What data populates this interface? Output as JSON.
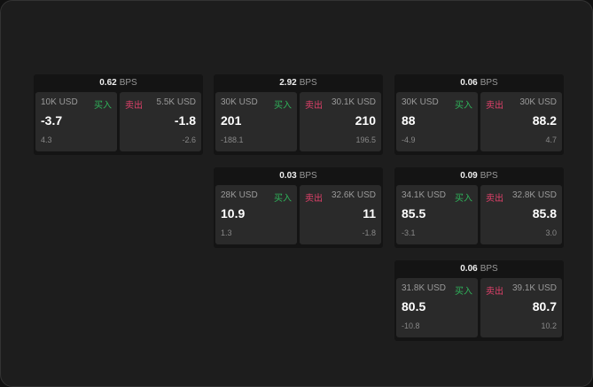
{
  "unit": "BPS",
  "buy_label": "买入",
  "sell_label": "卖出",
  "colors": {
    "buy": "#2fb35a",
    "sell": "#e0406a"
  },
  "cards": [
    {
      "spread": "0.62",
      "bid_size": "10K USD",
      "bid": "-3.7",
      "bid_chg": "4.3",
      "ask_size": "5.5K USD",
      "ask": "-1.8",
      "ask_chg": "-2.6"
    },
    {
      "spread": "2.92",
      "bid_size": "30K USD",
      "bid": "201",
      "bid_chg": "-188.1",
      "ask_size": "30.1K USD",
      "ask": "210",
      "ask_chg": "196.5"
    },
    {
      "spread": "0.06",
      "bid_size": "30K USD",
      "bid": "88",
      "bid_chg": "-4.9",
      "ask_size": "30K USD",
      "ask": "88.2",
      "ask_chg": "4.7"
    },
    {
      "spread": "0.03",
      "bid_size": "28K USD",
      "bid": "10.9",
      "bid_chg": "1.3",
      "ask_size": "32.6K USD",
      "ask": "11",
      "ask_chg": "-1.8"
    },
    {
      "spread": "0.09",
      "bid_size": "34.1K USD",
      "bid": "85.5",
      "bid_chg": "-3.1",
      "ask_size": "32.8K USD",
      "ask": "85.8",
      "ask_chg": "3.0"
    },
    {
      "spread": "0.06",
      "bid_size": "31.8K USD",
      "bid": "80.5",
      "bid_chg": "-10.8",
      "ask_size": "39.1K USD",
      "ask": "80.7",
      "ask_chg": "10.2"
    }
  ]
}
